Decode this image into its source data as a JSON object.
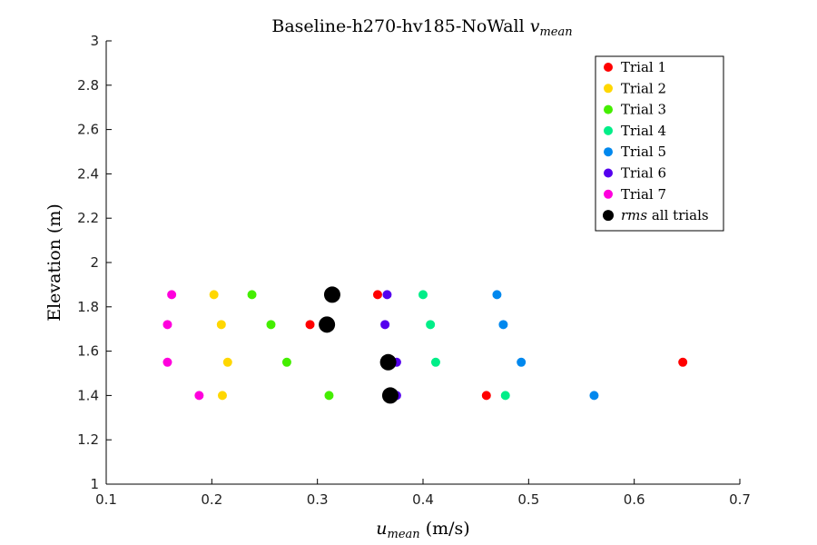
{
  "chart_data": {
    "type": "scatter",
    "title": {
      "main": "Baseline-h270-hv185-NoWall ",
      "var": "v",
      "sub": "mean"
    },
    "xlabel": {
      "var": "u",
      "sub": "mean",
      "unit": " (m/s)"
    },
    "ylabel": "Elevation (m)",
    "xlim": [
      0.1,
      0.7
    ],
    "ylim": [
      1,
      3
    ],
    "xticks": [
      "0.1",
      "0.2",
      "0.3",
      "0.4",
      "0.5",
      "0.6",
      "0.7"
    ],
    "yticks": [
      "1",
      "1.2",
      "1.4",
      "1.6",
      "1.8",
      "2",
      "2.2",
      "2.4",
      "2.6",
      "2.8",
      "3"
    ],
    "grid": false,
    "legend_position": "top-right",
    "series": [
      {
        "name": "Trial 1",
        "color": "#ff0000",
        "points": [
          [
            0.357,
            1.855
          ],
          [
            0.293,
            1.72
          ],
          [
            0.646,
            1.55
          ],
          [
            0.46,
            1.4
          ]
        ]
      },
      {
        "name": "Trial 2",
        "color": "#ffd700",
        "points": [
          [
            0.202,
            1.855
          ],
          [
            0.209,
            1.72
          ],
          [
            0.215,
            1.55
          ],
          [
            0.21,
            1.4
          ]
        ]
      },
      {
        "name": "Trial 3",
        "color": "#44ee00",
        "points": [
          [
            0.238,
            1.855
          ],
          [
            0.256,
            1.72
          ],
          [
            0.271,
            1.55
          ],
          [
            0.311,
            1.4
          ]
        ]
      },
      {
        "name": "Trial 4",
        "color": "#00ee88",
        "points": [
          [
            0.4,
            1.855
          ],
          [
            0.407,
            1.72
          ],
          [
            0.412,
            1.55
          ],
          [
            0.478,
            1.4
          ]
        ]
      },
      {
        "name": "Trial 5",
        "color": "#0088ee",
        "points": [
          [
            0.47,
            1.855
          ],
          [
            0.476,
            1.72
          ],
          [
            0.493,
            1.55
          ],
          [
            0.562,
            1.4
          ]
        ]
      },
      {
        "name": "Trial 6",
        "color": "#5500ee",
        "points": [
          [
            0.366,
            1.855
          ],
          [
            0.364,
            1.72
          ],
          [
            0.375,
            1.55
          ],
          [
            0.375,
            1.4
          ]
        ]
      },
      {
        "name": "Trial 7",
        "color": "#ff00dd",
        "points": [
          [
            0.162,
            1.855
          ],
          [
            0.158,
            1.72
          ],
          [
            0.158,
            1.55
          ],
          [
            0.188,
            1.4
          ]
        ]
      },
      {
        "name_var": "rms",
        "name_rest": " all trials",
        "color": "#000000",
        "large": true,
        "points": [
          [
            0.314,
            1.855
          ],
          [
            0.309,
            1.72
          ],
          [
            0.367,
            1.55
          ],
          [
            0.369,
            1.4
          ]
        ]
      }
    ]
  }
}
